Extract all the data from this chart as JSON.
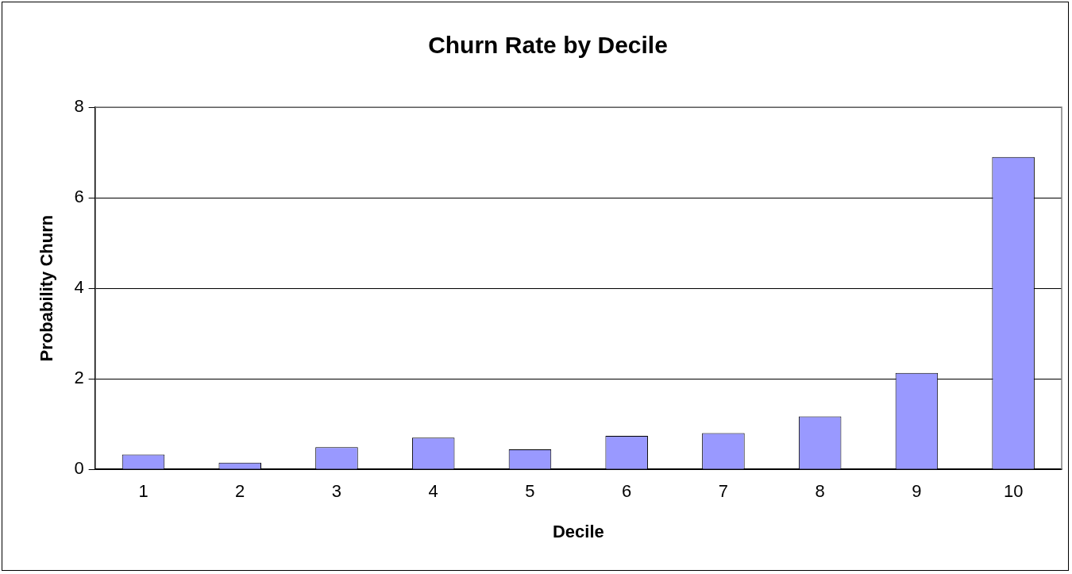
{
  "chart_data": {
    "type": "bar",
    "title": "Churn Rate by Decile",
    "xlabel": "Decile",
    "ylabel": "Probability Churn",
    "categories": [
      "1",
      "2",
      "3",
      "4",
      "5",
      "6",
      "7",
      "8",
      "9",
      "10"
    ],
    "values": [
      0.33,
      0.15,
      0.49,
      0.7,
      0.44,
      0.74,
      0.8,
      1.17,
      2.13,
      6.9
    ],
    "color": "#9999ff",
    "ylim": [
      0,
      8
    ],
    "yticks": [
      0,
      2,
      4,
      6,
      8
    ],
    "grid": "y",
    "legend": false
  }
}
